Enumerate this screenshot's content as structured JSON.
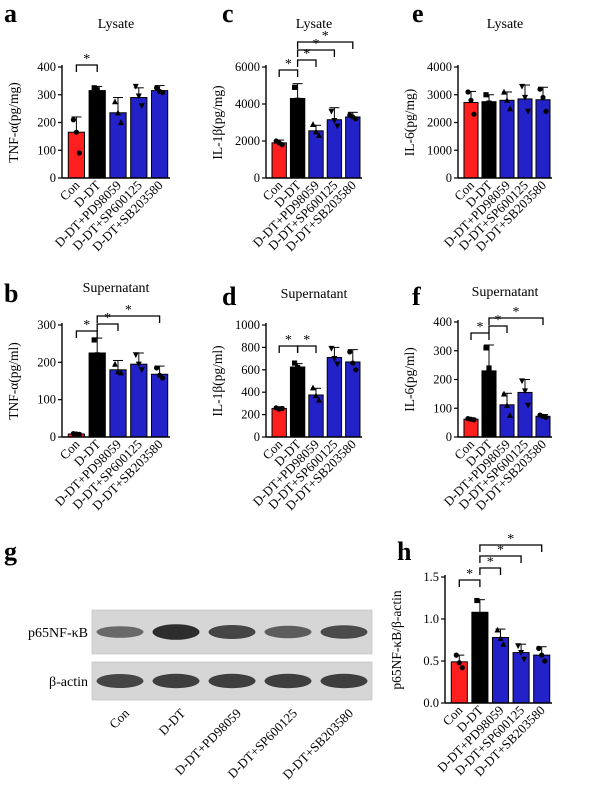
{
  "panel_letters": [
    "a",
    "b",
    "c",
    "d",
    "e",
    "f",
    "g",
    "h"
  ],
  "conditions": [
    "Con",
    "D-DT",
    "D-DT+PD98059",
    "D-DT+SP600125",
    "D-DT+SB203580"
  ],
  "colors": {
    "con": "#ff1f1f",
    "ddt": "#000000",
    "treat": "#2222c8"
  },
  "blot": {
    "rows": [
      "p65NF-κB",
      "β-actin"
    ],
    "p65_intensity": [
      0.45,
      0.95,
      0.75,
      0.55,
      0.7
    ],
    "actin_intensity": [
      0.75,
      0.8,
      0.8,
      0.8,
      0.8
    ]
  },
  "chart_data": [
    {
      "id": "a",
      "type": "bar",
      "title": "Lysate",
      "ylabel": "TNF-α(pg/mg)",
      "ylim": [
        0,
        400
      ],
      "yticks": [
        0,
        100,
        200,
        300,
        400
      ],
      "categories": [
        "Con",
        "D-DT",
        "D-DT+PD98059",
        "D-DT+SP600125",
        "D-DT+SB203580"
      ],
      "values": [
        165,
        315,
        235,
        290,
        315
      ],
      "errors": [
        55,
        15,
        55,
        35,
        18
      ],
      "points": [
        [
          210,
          165,
          90
        ],
        [
          325,
          318,
          305
        ],
        [
          275,
          235,
          200
        ],
        [
          330,
          295,
          260
        ],
        [
          325,
          312,
          308
        ]
      ],
      "sig": [
        [
          0,
          1
        ]
      ],
      "sig_label": "*"
    },
    {
      "id": "b",
      "type": "bar",
      "title": "Supernatant",
      "ylabel": "TNF-α(pg/ml)",
      "ylim": [
        0,
        300
      ],
      "yticks": [
        0,
        100,
        200,
        300
      ],
      "categories": [
        "Con",
        "D-DT",
        "D-DT+PD98059",
        "D-DT+SP600125",
        "D-DT+SB203580"
      ],
      "values": [
        8,
        225,
        180,
        195,
        168
      ],
      "errors": [
        3,
        40,
        25,
        30,
        22
      ],
      "points": [
        [
          9,
          8,
          7
        ],
        [
          260,
          220,
          200
        ],
        [
          195,
          175,
          172
        ],
        [
          220,
          195,
          180
        ],
        [
          185,
          165,
          158
        ]
      ],
      "sig": [
        [
          0,
          1
        ],
        [
          1,
          2
        ],
        [
          1,
          4
        ]
      ],
      "sig_label": "*"
    },
    {
      "id": "c",
      "type": "bar",
      "title": "Lysate",
      "ylabel": "IL-1β(pg/mg)",
      "ylim": [
        0,
        6000
      ],
      "yticks": [
        0,
        2000,
        4000,
        6000
      ],
      "categories": [
        "Con",
        "D-DT",
        "D-DT+PD98059",
        "D-DT+SP600125",
        "D-DT+SB203580"
      ],
      "values": [
        1900,
        4300,
        2550,
        3150,
        3300
      ],
      "errors": [
        150,
        800,
        300,
        650,
        250
      ],
      "points": [
        [
          2000,
          1900,
          1800
        ],
        [
          4900,
          4200,
          3800
        ],
        [
          2900,
          2500,
          2300
        ],
        [
          3600,
          3100,
          2800
        ],
        [
          3400,
          3300,
          3200
        ]
      ],
      "sig": [
        [
          0,
          1
        ],
        [
          1,
          2
        ],
        [
          1,
          3
        ],
        [
          1,
          4
        ]
      ],
      "sig_label": "*"
    },
    {
      "id": "d",
      "type": "bar",
      "title": "Supernatant",
      "ylabel": "IL-1β(pg/ml)",
      "ylim": [
        0,
        1000
      ],
      "yticks": [
        0,
        200,
        400,
        600,
        800,
        1000
      ],
      "categories": [
        "Con",
        "D-DT",
        "D-DT+PD98059",
        "D-DT+SP600125",
        "D-DT+SB203580"
      ],
      "values": [
        255,
        625,
        375,
        710,
        670
      ],
      "errors": [
        15,
        30,
        60,
        90,
        110
      ],
      "points": [
        [
          260,
          250,
          255
        ],
        [
          660,
          620,
          600
        ],
        [
          440,
          370,
          330
        ],
        [
          790,
          700,
          650
        ],
        [
          760,
          660,
          600
        ]
      ],
      "sig": [
        [
          0,
          1
        ],
        [
          1,
          2
        ]
      ],
      "sig_label": "*"
    },
    {
      "id": "e",
      "type": "bar",
      "title": "Lysate",
      "ylabel": "IL-6(pg/mg)",
      "ylim": [
        0,
        4000
      ],
      "yticks": [
        0,
        1000,
        2000,
        3000,
        4000
      ],
      "categories": [
        "Con",
        "D-DT",
        "D-DT+PD98059",
        "D-DT+SP600125",
        "D-DT+SB203580"
      ],
      "values": [
        2720,
        2750,
        2800,
        2850,
        2820
      ],
      "errors": [
        400,
        250,
        300,
        500,
        450
      ],
      "points": [
        [
          3100,
          2800,
          2300
        ],
        [
          3000,
          2700,
          2600
        ],
        [
          3100,
          2800,
          2500
        ],
        [
          3300,
          2900,
          2400
        ],
        [
          3200,
          2900,
          2400
        ]
      ],
      "sig": [],
      "sig_label": "*"
    },
    {
      "id": "f",
      "type": "bar",
      "title": "Supernatant",
      "ylabel": "IL-6(pg/ml)",
      "ylim": [
        0,
        400
      ],
      "yticks": [
        0,
        100,
        200,
        300,
        400
      ],
      "categories": [
        "Con",
        "D-DT",
        "D-DT+PD98059",
        "D-DT+SP600125",
        "D-DT+SB203580"
      ],
      "values": [
        62,
        230,
        112,
        155,
        72
      ],
      "errors": [
        3,
        90,
        40,
        45,
        6
      ],
      "points": [
        [
          64,
          62,
          60
        ],
        [
          310,
          240,
          150
        ],
        [
          150,
          110,
          75
        ],
        [
          195,
          160,
          110
        ],
        [
          76,
          72,
          68
        ]
      ],
      "sig": [
        [
          0,
          1
        ],
        [
          1,
          2
        ],
        [
          1,
          4
        ]
      ],
      "sig_label": "*"
    },
    {
      "id": "h",
      "type": "bar",
      "title": "",
      "ylabel": "p65NF-κB/β-actin",
      "ylim": [
        0,
        1.5
      ],
      "yticks": [
        0.0,
        0.5,
        1.0,
        1.5
      ],
      "categories": [
        "Con",
        "D-DT",
        "D-DT+PD98059",
        "D-DT+SP600125",
        "D-DT+SB203580"
      ],
      "values": [
        0.49,
        1.08,
        0.78,
        0.6,
        0.57
      ],
      "errors": [
        0.08,
        0.15,
        0.1,
        0.1,
        0.1
      ],
      "points": [
        [
          0.57,
          0.48,
          0.42
        ],
        [
          1.22,
          1.05,
          0.98
        ],
        [
          0.87,
          0.77,
          0.7
        ],
        [
          0.68,
          0.6,
          0.52
        ],
        [
          0.65,
          0.57,
          0.5
        ]
      ],
      "sig": [
        [
          0,
          1
        ],
        [
          1,
          2
        ],
        [
          1,
          3
        ],
        [
          1,
          4
        ]
      ],
      "sig_label": "*"
    }
  ]
}
